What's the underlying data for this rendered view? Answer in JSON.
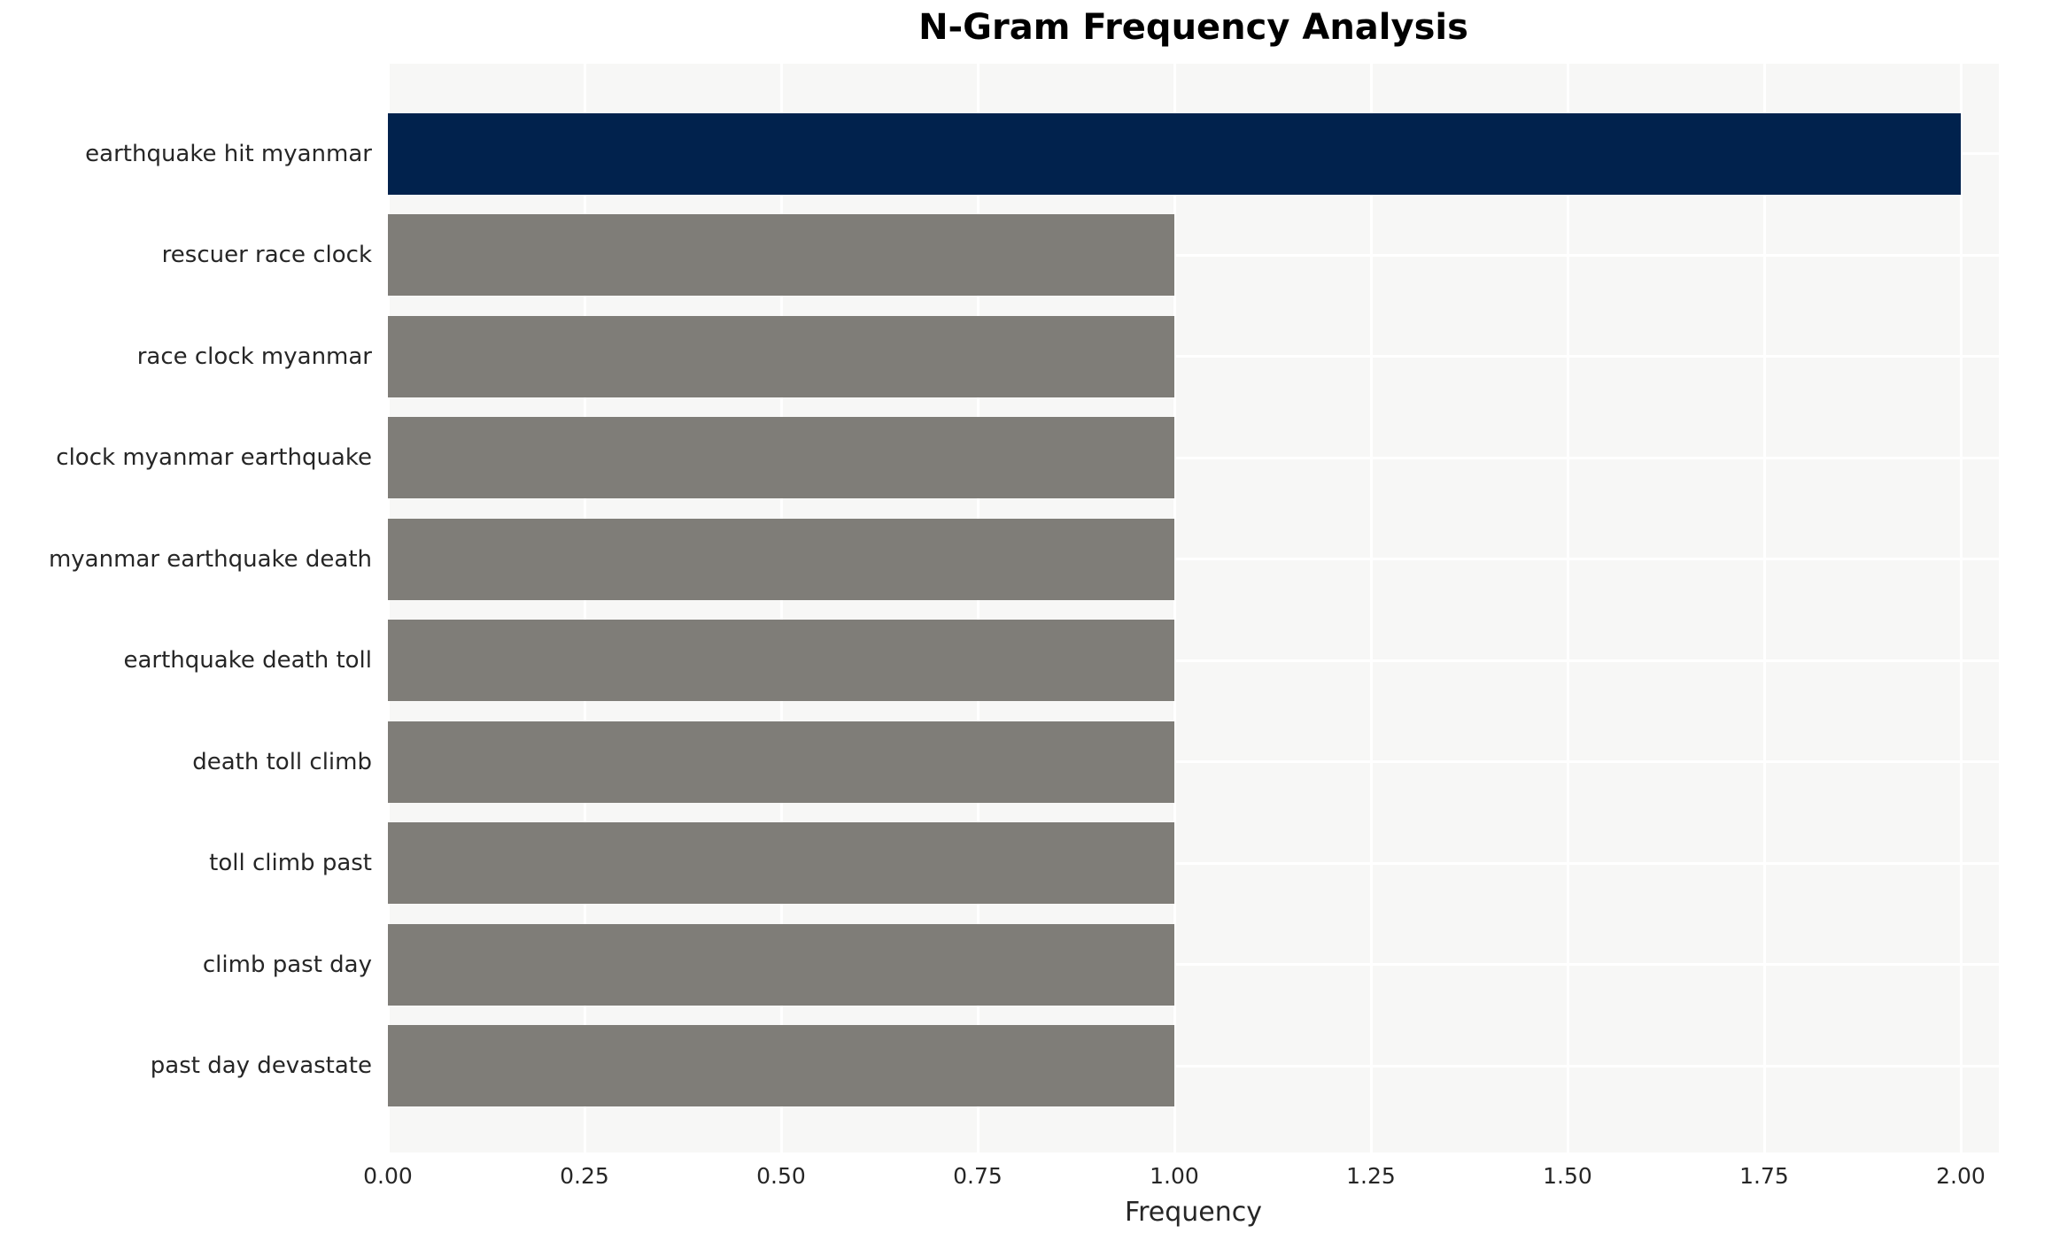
{
  "chart_data": {
    "type": "bar",
    "orientation": "horizontal",
    "title": "N-Gram Frequency Analysis",
    "xlabel": "Frequency",
    "ylabel": "",
    "categories": [
      "earthquake hit myanmar",
      "rescuer race clock",
      "race clock myanmar",
      "clock myanmar earthquake",
      "myanmar earthquake death",
      "earthquake death toll",
      "death toll climb",
      "toll climb past",
      "climb past day",
      "past day devastate"
    ],
    "values": [
      2,
      1,
      1,
      1,
      1,
      1,
      1,
      1,
      1,
      1
    ],
    "bar_colors": [
      "#01224d",
      "#7f7d78",
      "#7f7d78",
      "#7f7d78",
      "#7f7d78",
      "#7f7d78",
      "#7f7d78",
      "#7f7d78",
      "#7f7d78",
      "#7f7d78"
    ],
    "xlim": [
      0,
      2.05
    ],
    "xticks": {
      "values": [
        0,
        0.25,
        0.5,
        0.75,
        1.0,
        1.25,
        1.5,
        1.75,
        2.0
      ],
      "labels": [
        "0.00",
        "0.25",
        "0.50",
        "0.75",
        "1.00",
        "1.25",
        "1.50",
        "1.75",
        "2.00"
      ]
    },
    "grid": true,
    "legend": null,
    "colors": {
      "bar_highlight": "#01224d",
      "bar_default": "#7f7d78",
      "plot_background": "#f7f7f6",
      "gridline": "#ffffff",
      "tick_text": "#262626",
      "title_text": "#000000"
    }
  }
}
